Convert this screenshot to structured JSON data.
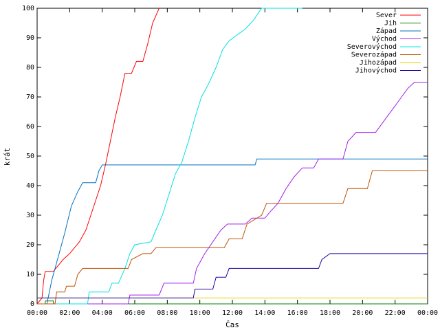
{
  "chart_data": {
    "type": "line",
    "title": "",
    "xlabel": "Čas",
    "ylabel": "krát",
    "xlim": [
      0,
      24
    ],
    "ylim": [
      0,
      100
    ],
    "x_ticks": [
      "00:00",
      "02:00",
      "04:00",
      "06:00",
      "08:00",
      "10:00",
      "12:00",
      "14:00",
      "16:00",
      "18:00",
      "20:00",
      "22:00",
      "00:00"
    ],
    "y_ticks": [
      0,
      10,
      20,
      30,
      40,
      50,
      60,
      70,
      80,
      90,
      100
    ],
    "grid": false,
    "legend_position": "top-right",
    "series": [
      {
        "name": "Sever",
        "color": "#ff0000",
        "points": [
          [
            0,
            0
          ],
          [
            0.3,
            2
          ],
          [
            0.4,
            8
          ],
          [
            0.5,
            11
          ],
          [
            1.0,
            11
          ],
          [
            1.3,
            13
          ],
          [
            1.6,
            15
          ],
          [
            2.0,
            17
          ],
          [
            2.3,
            19
          ],
          [
            2.6,
            21
          ],
          [
            3.0,
            25
          ],
          [
            3.3,
            30
          ],
          [
            3.6,
            35
          ],
          [
            3.9,
            40
          ],
          [
            4.2,
            47
          ],
          [
            4.5,
            55
          ],
          [
            4.8,
            63
          ],
          [
            5.1,
            70
          ],
          [
            5.4,
            78
          ],
          [
            5.8,
            78
          ],
          [
            6.1,
            82
          ],
          [
            6.5,
            82
          ],
          [
            6.8,
            88
          ],
          [
            7.1,
            95
          ],
          [
            7.5,
            100
          ]
        ]
      },
      {
        "name": "Jih",
        "color": "#008000",
        "points": [
          [
            0,
            0
          ],
          [
            0.5,
            0
          ],
          [
            0.5,
            1
          ],
          [
            1.0,
            1
          ],
          [
            1.0,
            0
          ],
          [
            24,
            0
          ]
        ]
      },
      {
        "name": "Západ",
        "color": "#0070c0",
        "points": [
          [
            0,
            0
          ],
          [
            0.6,
            0
          ],
          [
            0.9,
            8
          ],
          [
            1.3,
            16
          ],
          [
            1.7,
            24
          ],
          [
            2.1,
            33
          ],
          [
            2.5,
            38
          ],
          [
            2.8,
            41
          ],
          [
            3.6,
            41
          ],
          [
            3.8,
            45
          ],
          [
            4.0,
            47
          ],
          [
            13.4,
            47
          ],
          [
            13.5,
            49
          ],
          [
            24,
            49
          ]
        ]
      },
      {
        "name": "Východ",
        "color": "#a020f0",
        "points": [
          [
            0,
            0
          ],
          [
            5.6,
            0
          ],
          [
            5.7,
            3
          ],
          [
            7.5,
            3
          ],
          [
            7.8,
            7
          ],
          [
            9.6,
            7
          ],
          [
            9.8,
            12
          ],
          [
            10.3,
            17
          ],
          [
            10.8,
            21
          ],
          [
            11.3,
            25
          ],
          [
            11.7,
            27
          ],
          [
            12.8,
            27
          ],
          [
            13.2,
            29
          ],
          [
            14.0,
            29
          ],
          [
            14.3,
            31
          ],
          [
            14.8,
            34
          ],
          [
            15.3,
            39
          ],
          [
            15.8,
            43
          ],
          [
            16.3,
            46
          ],
          [
            17.0,
            46
          ],
          [
            17.3,
            49
          ],
          [
            18.8,
            49
          ],
          [
            19.1,
            55
          ],
          [
            19.6,
            58
          ],
          [
            20.8,
            58
          ],
          [
            21.2,
            61
          ],
          [
            21.6,
            64
          ],
          [
            22.0,
            67
          ],
          [
            22.4,
            70
          ],
          [
            22.8,
            73
          ],
          [
            23.2,
            75
          ],
          [
            24,
            75
          ]
        ]
      },
      {
        "name": "Severovýchod",
        "color": "#00e0e0",
        "points": [
          [
            0,
            0
          ],
          [
            3.1,
            0
          ],
          [
            3.2,
            4
          ],
          [
            4.4,
            4
          ],
          [
            4.6,
            7
          ],
          [
            5.0,
            7
          ],
          [
            5.4,
            12
          ],
          [
            5.7,
            17
          ],
          [
            6.0,
            20
          ],
          [
            7.0,
            21
          ],
          [
            7.3,
            25
          ],
          [
            7.7,
            30
          ],
          [
            8.1,
            37
          ],
          [
            8.5,
            44
          ],
          [
            8.9,
            48
          ],
          [
            9.3,
            55
          ],
          [
            9.7,
            63
          ],
          [
            10.1,
            70
          ],
          [
            10.5,
            74
          ],
          [
            11.0,
            80
          ],
          [
            11.4,
            86
          ],
          [
            11.8,
            89
          ],
          [
            12.3,
            91
          ],
          [
            12.8,
            93
          ],
          [
            13.3,
            96
          ],
          [
            13.8,
            100
          ],
          [
            16.3,
            100
          ]
        ]
      },
      {
        "name": "Severozápad",
        "color": "#c05000",
        "points": [
          [
            0,
            0
          ],
          [
            1.1,
            0
          ],
          [
            1.2,
            4
          ],
          [
            1.7,
            4
          ],
          [
            1.8,
            6
          ],
          [
            2.3,
            6
          ],
          [
            2.5,
            10
          ],
          [
            2.8,
            12
          ],
          [
            5.6,
            12
          ],
          [
            5.8,
            15
          ],
          [
            6.5,
            17
          ],
          [
            7.0,
            17
          ],
          [
            7.3,
            19
          ],
          [
            11.5,
            19
          ],
          [
            11.8,
            22
          ],
          [
            12.6,
            22
          ],
          [
            12.9,
            27
          ],
          [
            13.8,
            30
          ],
          [
            14.1,
            34
          ],
          [
            18.8,
            34
          ],
          [
            19.1,
            39
          ],
          [
            20.3,
            39
          ],
          [
            20.6,
            45
          ],
          [
            24,
            45
          ]
        ]
      },
      {
        "name": "Jihozápad",
        "color": "#e0d000",
        "points": [
          [
            0,
            2
          ],
          [
            24,
            2
          ]
        ]
      },
      {
        "name": "Jihovýchod",
        "color": "#2000a0",
        "points": [
          [
            0,
            2
          ],
          [
            9.6,
            2
          ],
          [
            9.7,
            5
          ],
          [
            10.8,
            5
          ],
          [
            11.0,
            9
          ],
          [
            11.6,
            9
          ],
          [
            11.8,
            12
          ],
          [
            17.3,
            12
          ],
          [
            17.5,
            15
          ],
          [
            18.0,
            17
          ],
          [
            24,
            17
          ]
        ]
      }
    ]
  }
}
